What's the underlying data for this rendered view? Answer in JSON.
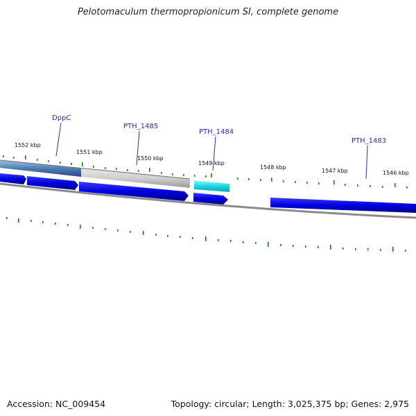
{
  "title": "Pelotomaculum thermopropionicum SI, complete genome",
  "footer": {
    "accession": "Accession: NC_009454",
    "stats": "Topology: circular; Length: 3,025,375 bp; Genes: 2,975"
  },
  "gene_labels": [
    "DppC",
    "PTH_1485",
    "PTH_1484",
    "PTH_1483"
  ],
  "kbp_labels": [
    "1552 kbp",
    "1551 kbp",
    "1550 kbp",
    "1549 kbp",
    "1548 kbp",
    "1547 kbp",
    "1546 kbp"
  ],
  "colors": {
    "cds_blue": "#0000e0",
    "highlight_cyan": "#19d6e0",
    "gray_track": "#c9c9c9",
    "steelblue_track": "#4a7fb0",
    "tick_green": "#0a8a0a",
    "backbone": "#8a8a8a",
    "label_blue": "#1f2fb8"
  }
}
